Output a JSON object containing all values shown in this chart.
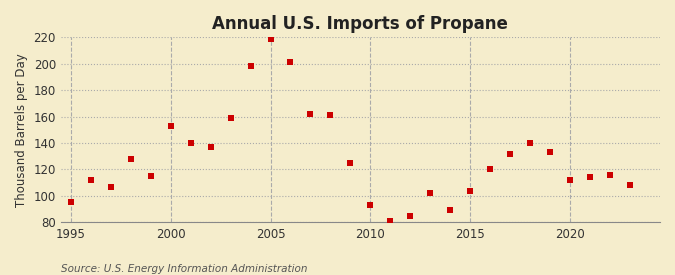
{
  "title": "Annual U.S. Imports of Propane",
  "ylabel": "Thousand Barrels per Day",
  "source_text": "Source: U.S. Energy Information Administration",
  "background_color": "#f5edcc",
  "plot_bg_color": "#f5edcc",
  "years": [
    1995,
    1996,
    1997,
    1998,
    1999,
    2000,
    2001,
    2002,
    2003,
    2004,
    2005,
    2006,
    2007,
    2008,
    2009,
    2010,
    2011,
    2012,
    2013,
    2014,
    2015,
    2016,
    2017,
    2018,
    2019,
    2020,
    2021,
    2022,
    2023
  ],
  "values": [
    95,
    112,
    107,
    128,
    115,
    153,
    140,
    137,
    159,
    198,
    219,
    201,
    162,
    161,
    125,
    93,
    81,
    85,
    102,
    89,
    104,
    120,
    132,
    140,
    133,
    112,
    114,
    116,
    108
  ],
  "marker_color": "#cc0000",
  "marker_size": 25,
  "ylim": [
    80,
    220
  ],
  "yticks": [
    80,
    100,
    120,
    140,
    160,
    180,
    200,
    220
  ],
  "xlim": [
    1994.5,
    2024.5
  ],
  "xticks": [
    1995,
    2000,
    2005,
    2010,
    2015,
    2020
  ],
  "grid_color": "#aaaaaa",
  "title_fontsize": 12,
  "label_fontsize": 8.5,
  "tick_fontsize": 8.5,
  "source_fontsize": 7.5
}
